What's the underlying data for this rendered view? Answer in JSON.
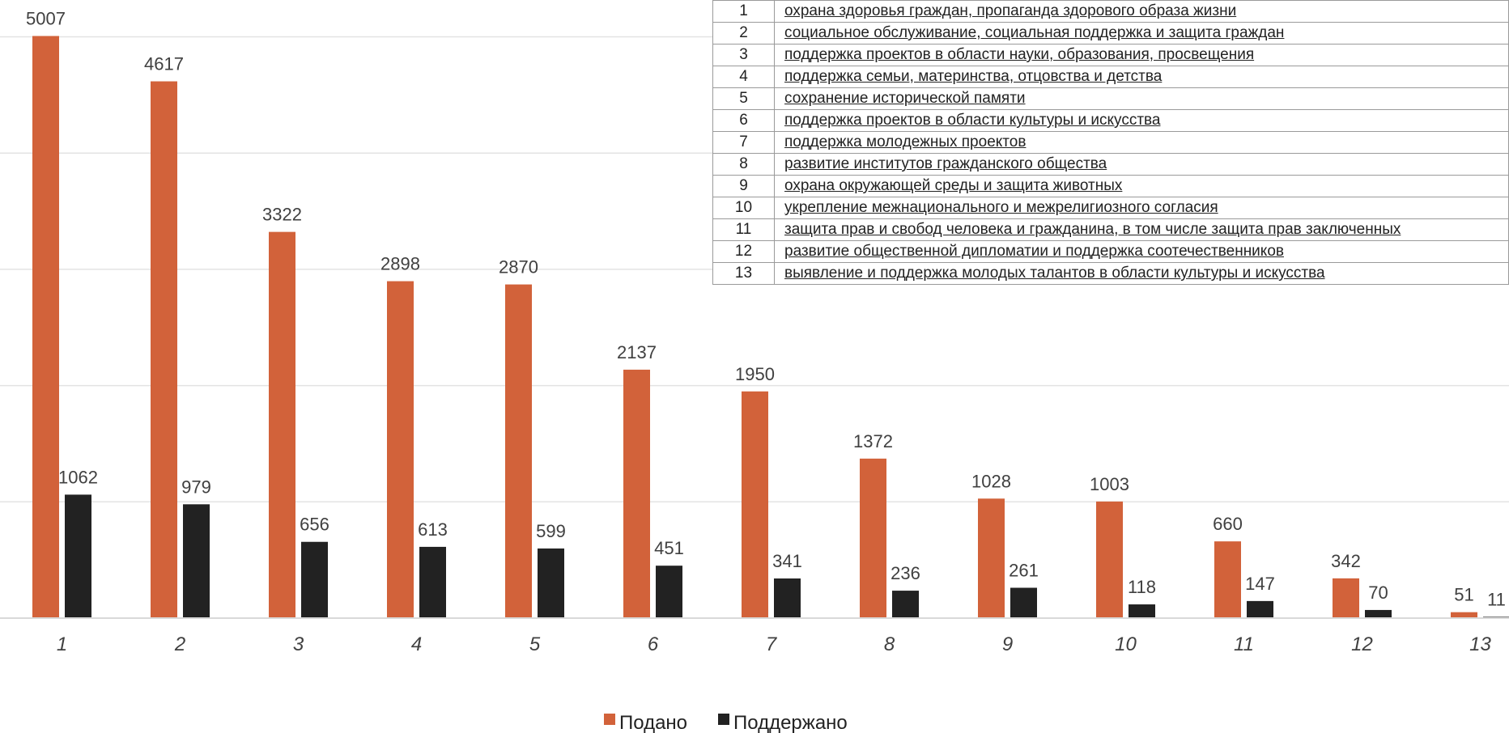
{
  "chart_data": {
    "type": "bar",
    "categories": [
      "1",
      "2",
      "3",
      "4",
      "5",
      "6",
      "7",
      "8",
      "9",
      "10",
      "11",
      "12",
      "13"
    ],
    "series": [
      {
        "name": "Подано",
        "color": "#D2623A",
        "values": [
          5007,
          4617,
          3322,
          2898,
          2870,
          2137,
          1950,
          1372,
          1028,
          1003,
          660,
          342,
          51
        ]
      },
      {
        "name": "Поддержано",
        "color": "#222222",
        "values": [
          1062,
          979,
          656,
          613,
          599,
          451,
          341,
          236,
          261,
          118,
          147,
          70,
          11
        ]
      }
    ],
    "ylim": [
      0,
      5250
    ],
    "grid": true,
    "legend_position": "bottom-center",
    "category_table": [
      {
        "num": "1",
        "label": "охрана здоровья граждан, пропаганда здорового образа жизни"
      },
      {
        "num": "2",
        "label": "социальное обслуживание, социальная поддержка и защита граждан"
      },
      {
        "num": "3",
        "label": "поддержка проектов в области науки, образования, просвещения"
      },
      {
        "num": "4",
        "label": "поддержка семьи, материнства, отцовства и детства"
      },
      {
        "num": "5",
        "label": "сохранение исторической памяти"
      },
      {
        "num": "6",
        "label": "поддержка проектов в области культуры и искусства"
      },
      {
        "num": "7",
        "label": "поддержка молодежных проектов"
      },
      {
        "num": "8",
        "label": "развитие институтов гражданского общества"
      },
      {
        "num": "9",
        "label": "охрана окружающей среды и защита животных"
      },
      {
        "num": "10",
        "label": "укрепление межнационального и межрелигиозного согласия"
      },
      {
        "num": "11",
        "label": "защита прав и свобод человека и гражданина, в том числе защита прав заключенных"
      },
      {
        "num": "12",
        "label": "развитие общественной дипломатии и поддержка соотечественников"
      },
      {
        "num": "13",
        "label": "выявление и поддержка молодых талантов в области культуры и искусства"
      }
    ]
  }
}
